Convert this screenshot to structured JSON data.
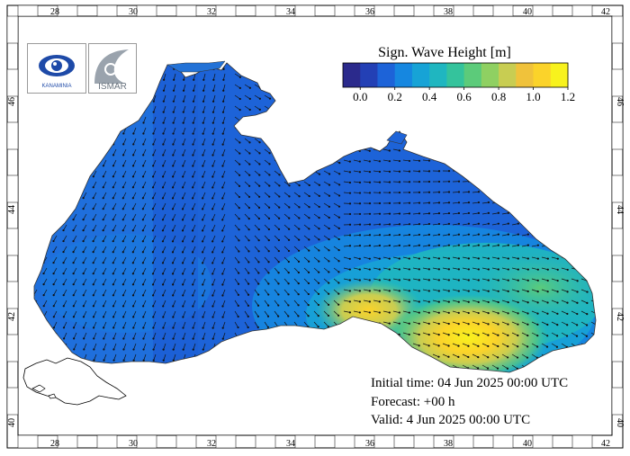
{
  "map": {
    "lon_ticks": [
      "28",
      "30",
      "32",
      "34",
      "36",
      "38",
      "40",
      "42"
    ],
    "lat_ticks": [
      "40",
      "42",
      "44",
      "46"
    ],
    "colorbar": {
      "title": "Sign. Wave Height [m]",
      "labels": [
        "0.0",
        "0.2",
        "0.4",
        "0.6",
        "0.8",
        "1.0",
        "1.2"
      ],
      "colors": [
        "#2b2a8c",
        "#2340b5",
        "#1d63d8",
        "#1687e0",
        "#17a3d6",
        "#1fb6c0",
        "#34c39c",
        "#5ccb7a",
        "#8fd062",
        "#c8cd52",
        "#f0c23b",
        "#fbd32a",
        "#f8f21d"
      ]
    },
    "logos": {
      "left_text": "KANAMINIA",
      "right_text": "ISMAR"
    },
    "info": {
      "initial": "Initial time: 04 Jun 2025 00:00 UTC",
      "forecast": "Forecast: +00 h",
      "valid": "Valid:  4 Jun 2025 00:00 UTC"
    }
  }
}
